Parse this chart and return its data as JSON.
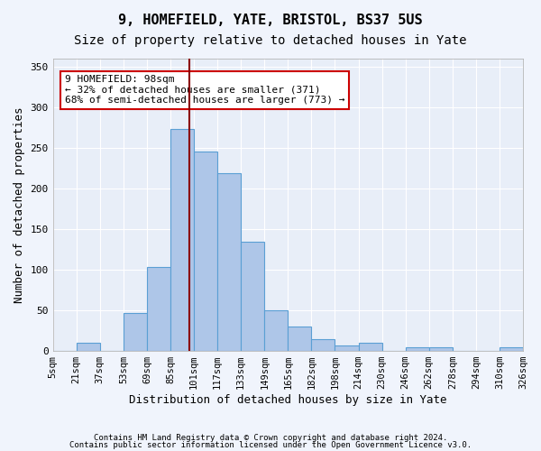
{
  "title1": "9, HOMEFIELD, YATE, BRISTOL, BS37 5US",
  "title2": "Size of property relative to detached houses in Yate",
  "xlabel": "Distribution of detached houses by size in Yate",
  "ylabel": "Number of detached properties",
  "footer1": "Contains HM Land Registry data © Crown copyright and database right 2024.",
  "footer2": "Contains public sector information licensed under the Open Government Licence v3.0.",
  "bar_labels": [
    "5sqm",
    "21sqm",
    "37sqm",
    "53sqm",
    "69sqm",
    "85sqm",
    "101sqm",
    "117sqm",
    "133sqm",
    "149sqm",
    "165sqm",
    "182sqm",
    "198sqm",
    "214sqm",
    "230sqm",
    "246sqm",
    "262sqm",
    "278sqm",
    "294sqm",
    "310sqm",
    "326sqm"
  ],
  "bar_values": [
    0,
    10,
    0,
    47,
    103,
    273,
    246,
    219,
    135,
    50,
    30,
    15,
    7,
    10,
    0,
    4,
    4,
    0,
    0,
    4
  ],
  "bar_color": "#aec6e8",
  "bar_edge_color": "#5a9fd4",
  "property_line_x": 5,
  "property_line_color": "#8b0000",
  "annotation_text": "9 HOMEFIELD: 98sqm\n← 32% of detached houses are smaller (371)\n68% of semi-detached houses are larger (773) →",
  "annotation_box_color": "#ffffff",
  "annotation_box_edge": "#cc0000",
  "ylim": [
    0,
    360
  ],
  "yticks": [
    0,
    50,
    100,
    150,
    200,
    250,
    300,
    350
  ],
  "bg_color": "#e8eef8",
  "title1_fontsize": 11,
  "title2_fontsize": 10,
  "xlabel_fontsize": 9,
  "ylabel_fontsize": 9,
  "tick_fontsize": 7.5
}
